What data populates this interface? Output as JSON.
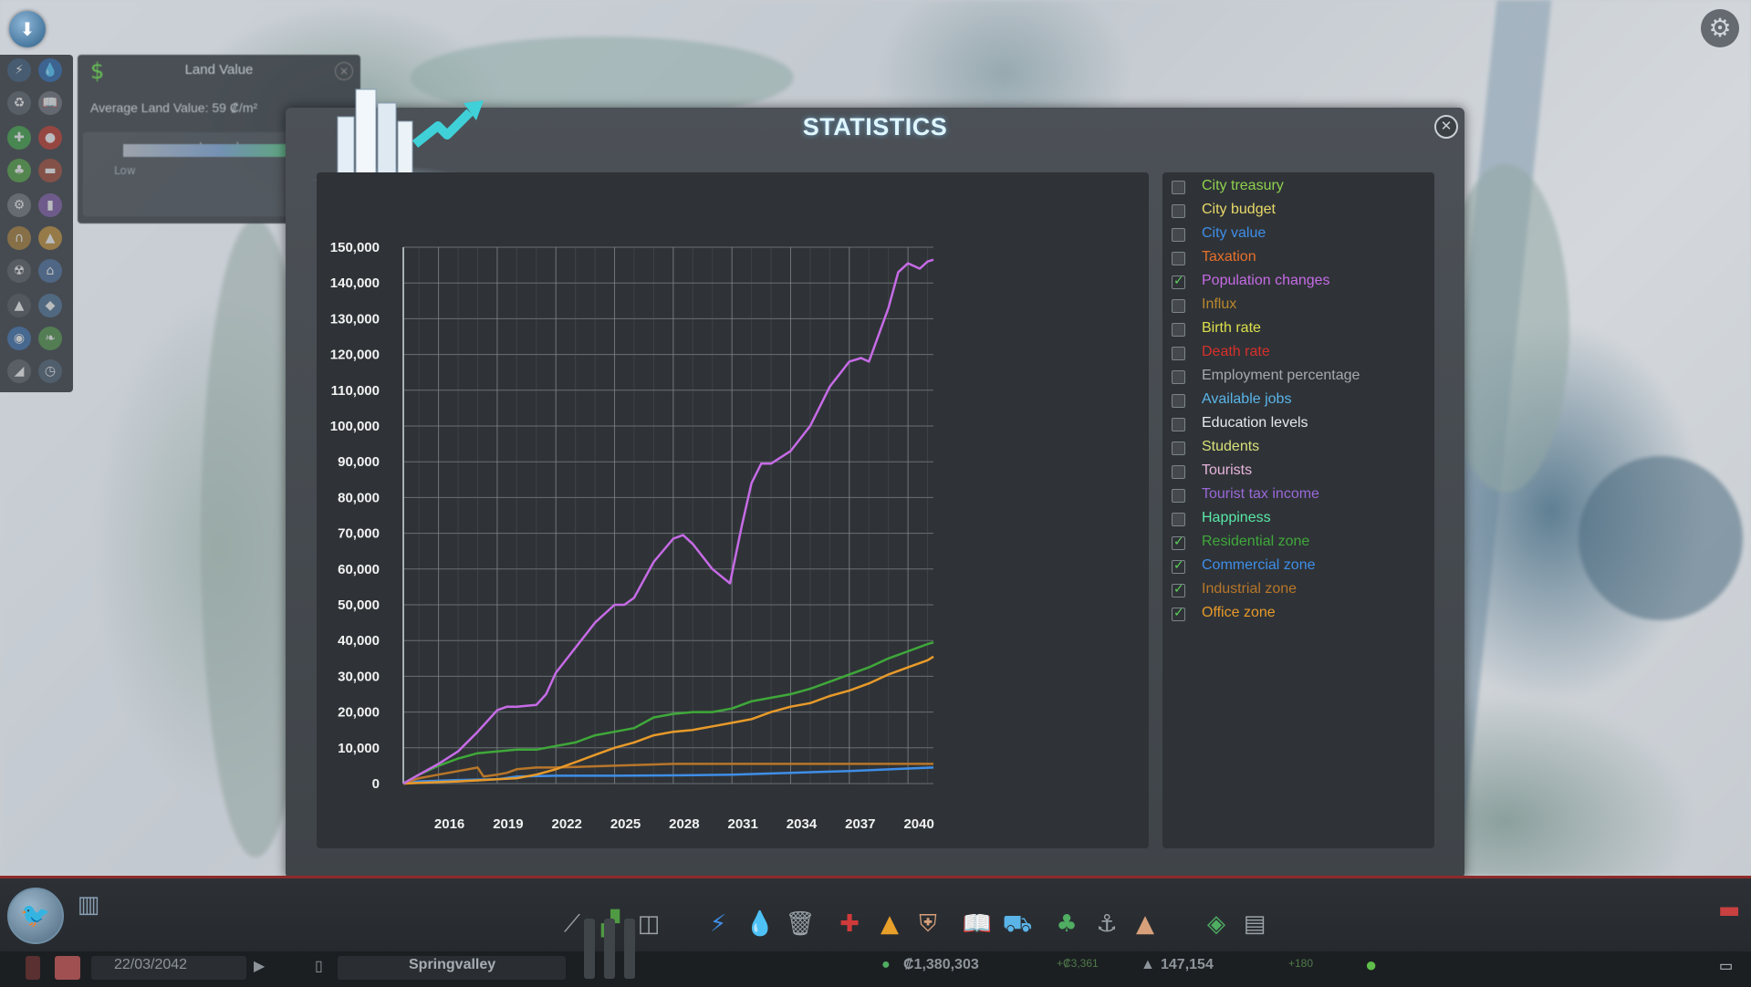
{
  "window": {
    "title": "STATISTICS"
  },
  "side_panel": {
    "title": "Land Value",
    "average_label": "Average Land Value: 59 ₡/m²",
    "legend_label": "Legend",
    "legend_low": "Low"
  },
  "legend": {
    "items": [
      {
        "label": "City treasury",
        "checked": false,
        "color": "#8fd14f"
      },
      {
        "label": "City budget",
        "checked": false,
        "color": "#e8d96a"
      },
      {
        "label": "City value",
        "checked": false,
        "color": "#3f8ee8"
      },
      {
        "label": "Taxation",
        "checked": false,
        "color": "#e8702a"
      },
      {
        "label": "Population changes",
        "checked": true,
        "color": "#c66be6"
      },
      {
        "label": "Influx",
        "checked": false,
        "color": "#b9882c"
      },
      {
        "label": "Birth rate",
        "checked": false,
        "color": "#dde04a"
      },
      {
        "label": "Death rate",
        "checked": false,
        "color": "#d8302a"
      },
      {
        "label": "Employment percentage",
        "checked": false,
        "color": "#a4aab0"
      },
      {
        "label": "Available jobs",
        "checked": false,
        "color": "#5ab4e8"
      },
      {
        "label": "Education levels",
        "checked": false,
        "color": "#e8eaec"
      },
      {
        "label": "Students",
        "checked": false,
        "color": "#d8e07a"
      },
      {
        "label": "Tourists",
        "checked": false,
        "color": "#e8b4dc"
      },
      {
        "label": "Tourist tax income",
        "checked": false,
        "color": "#9a68d8"
      },
      {
        "label": "Happiness",
        "checked": false,
        "color": "#5ae8a8"
      },
      {
        "label": "Residential zone",
        "checked": true,
        "color": "#3fa83a"
      },
      {
        "label": "Commercial zone",
        "checked": true,
        "color": "#3f8ee8"
      },
      {
        "label": "Industrial zone",
        "checked": true,
        "color": "#b8762a"
      },
      {
        "label": "Office zone",
        "checked": true,
        "color": "#e89a2a"
      }
    ]
  },
  "chart_data": {
    "type": "line",
    "title": "",
    "xlabel": "",
    "ylabel": "",
    "xlim": [
      2014.2,
      2041.3
    ],
    "ylim": [
      0,
      150000
    ],
    "x_ticks": [
      "2016",
      "2019",
      "2022",
      "2025",
      "2028",
      "2031",
      "2034",
      "2037",
      "2040"
    ],
    "x_tick_values": [
      2016,
      2019,
      2022,
      2025,
      2028,
      2031,
      2034,
      2037,
      2040
    ],
    "y_ticks": [
      "0",
      "10,000",
      "20,000",
      "30,000",
      "40,000",
      "50,000",
      "60,000",
      "70,000",
      "80,000",
      "90,000",
      "100,000",
      "110,000",
      "120,000",
      "130,000",
      "140,000",
      "150,000"
    ],
    "y_tick_values": [
      0,
      10000,
      20000,
      30000,
      40000,
      50000,
      60000,
      70000,
      80000,
      90000,
      100000,
      110000,
      120000,
      130000,
      140000,
      150000
    ],
    "grid": true,
    "series": [
      {
        "name": "Population changes",
        "color": "#c66be6",
        "x": [
          2014.2,
          2015,
          2016,
          2017,
          2018,
          2019,
          2019.5,
          2020,
          2021,
          2021.5,
          2022,
          2023,
          2024,
          2025,
          2025.5,
          2026,
          2027,
          2028,
          2028.5,
          2029,
          2030,
          2030.9,
          2031.5,
          2032,
          2032.5,
          2033,
          2034,
          2035,
          2036,
          2037,
          2037.6,
          2038,
          2039,
          2039.5,
          2040,
          2040.6,
          2041,
          2041.3
        ],
        "y": [
          0,
          2500,
          5500,
          9000,
          14500,
          20500,
          21500,
          21500,
          22000,
          25000,
          31000,
          38000,
          45000,
          50000,
          50000,
          52000,
          62000,
          68500,
          69500,
          67000,
          60000,
          56000,
          72000,
          84000,
          89500,
          89500,
          93000,
          100000,
          111000,
          118000,
          119000,
          118000,
          133000,
          143000,
          145500,
          144000,
          146000,
          146500
        ]
      },
      {
        "name": "Residential zone",
        "color": "#3fa83a",
        "x": [
          2014.2,
          2015,
          2016,
          2017,
          2018,
          2019,
          2020,
          2021,
          2022,
          2023,
          2024,
          2025,
          2026,
          2027,
          2028,
          2029,
          2030,
          2031,
          2032,
          2033,
          2034,
          2035,
          2036,
          2037,
          2038,
          2039,
          2040,
          2041,
          2041.3
        ],
        "y": [
          0,
          2500,
          5000,
          7000,
          8500,
          9000,
          9500,
          9500,
          10500,
          11500,
          13500,
          14500,
          15500,
          18500,
          19500,
          20000,
          20000,
          21000,
          23000,
          24000,
          25000,
          26500,
          28500,
          30500,
          32500,
          35000,
          37000,
          39000,
          39500
        ]
      },
      {
        "name": "Office zone",
        "color": "#e89a2a",
        "x": [
          2014.2,
          2015,
          2016,
          2017,
          2018,
          2019,
          2020,
          2021,
          2022,
          2023,
          2024,
          2025,
          2026,
          2027,
          2028,
          2029,
          2030,
          2031,
          2032,
          2033,
          2034,
          2035,
          2036,
          2037,
          2038,
          2039,
          2040,
          2041,
          2041.3
        ],
        "y": [
          0,
          200,
          400,
          600,
          900,
          1200,
          1500,
          2500,
          4000,
          6000,
          8000,
          10000,
          11500,
          13500,
          14500,
          15000,
          16000,
          17000,
          18000,
          20000,
          21500,
          22500,
          24500,
          26000,
          28000,
          30500,
          32500,
          34500,
          35500
        ]
      },
      {
        "name": "Industrial zone",
        "color": "#b8762a",
        "x": [
          2014.2,
          2015,
          2016,
          2017,
          2018,
          2018.3,
          2019,
          2019.5,
          2020,
          2021,
          2022,
          2025,
          2028,
          2031,
          2034,
          2037,
          2040,
          2041.3
        ],
        "y": [
          0,
          1500,
          2500,
          3500,
          4500,
          2000,
          2500,
          3000,
          4000,
          4500,
          4500,
          5000,
          5500,
          5500,
          5500,
          5500,
          5500,
          5500
        ]
      },
      {
        "name": "Commercial zone",
        "color": "#3f8ee8",
        "x": [
          2014.2,
          2015,
          2017,
          2019,
          2020,
          2022,
          2025,
          2028,
          2031,
          2034,
          2037,
          2040,
          2041.3
        ],
        "y": [
          0,
          600,
          1000,
          1200,
          2000,
          2200,
          2200,
          2300,
          2500,
          3000,
          3500,
          4200,
          4500
        ]
      }
    ]
  },
  "bottom_bar": {
    "date": "22/03/2042",
    "city_name": "Springvalley",
    "money": "₡1,380,303",
    "money_delta": "+₡3,361",
    "population": "147,154",
    "population_delta": "+180"
  }
}
